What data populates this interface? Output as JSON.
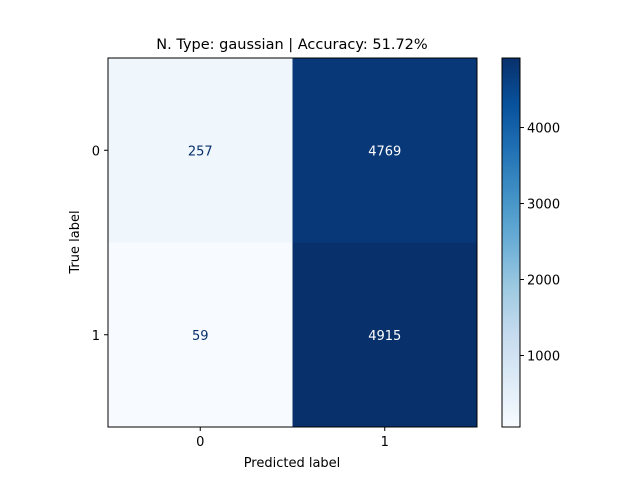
{
  "chart_data": {
    "type": "heatmap",
    "title": "N. Type: gaussian | Accuracy: 51.72%",
    "xlabel": "Predicted label",
    "ylabel": "True label",
    "x_categories": [
      "0",
      "1"
    ],
    "y_categories": [
      "0",
      "1"
    ],
    "values": [
      [
        257,
        4769
      ],
      [
        59,
        4915
      ]
    ],
    "colormap": "Blues",
    "colorbar": {
      "vmin": 59,
      "vmax": 4915,
      "ticks": [
        1000,
        2000,
        3000,
        4000
      ]
    }
  }
}
